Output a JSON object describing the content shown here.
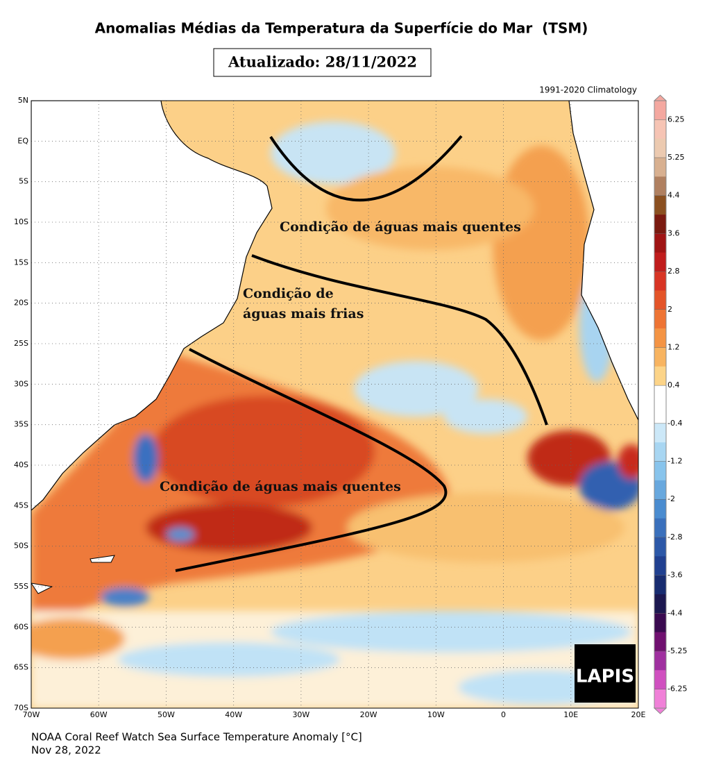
{
  "header": {
    "title": "Anomalias Médias da Temperatura da Superfície do Mar  (TSM)",
    "updated": "Atualizado: 28/11/2022",
    "climatology": "1991-2020 Climatology"
  },
  "map": {
    "lat_labels": [
      "5N",
      "EQ",
      "5S",
      "10S",
      "15S",
      "20S",
      "25S",
      "30S",
      "35S",
      "40S",
      "45S",
      "50S",
      "55S",
      "60S",
      "65S",
      "70S"
    ],
    "lon_labels": [
      "70W",
      "60W",
      "50W",
      "40W",
      "30W",
      "20W",
      "10W",
      "0",
      "10E",
      "20E"
    ],
    "annotations": [
      "Condição de águas mais quentes",
      "Condição de",
      "águas mais frias",
      "Condição de águas mais quentes"
    ]
  },
  "colorbar": {
    "labels": [
      6.25,
      5.25,
      4.4,
      3.6,
      2.8,
      2,
      1.2,
      0.4,
      -0.4,
      -1.2,
      -2,
      -2.8,
      -3.6,
      -4.4,
      -5.25,
      -6.25
    ],
    "colors": [
      "#f4a8a0",
      "#f6c4b4",
      "#eccab0",
      "#d8b090",
      "#b08060",
      "#8b5020",
      "#7a1a10",
      "#a01414",
      "#c01c1c",
      "#d83424",
      "#e45428",
      "#ee7434",
      "#f49444",
      "#f8b460",
      "#fcd488",
      "#ffffff",
      "#ffffff",
      "#cce8f8",
      "#a8d6f2",
      "#88c4ec",
      "#68a8de",
      "#4a8cd0",
      "#3a70bc",
      "#2c58a8",
      "#204090",
      "#182c70",
      "#1c1850",
      "#3a0a50",
      "#701070",
      "#a030a0",
      "#d050c0",
      "#f080d8"
    ]
  },
  "logo": "LAPIS",
  "footer": [
    "NOAA Coral Reef Watch Sea Surface Temperature Anomaly [°C]",
    "Nov 28, 2022"
  ]
}
